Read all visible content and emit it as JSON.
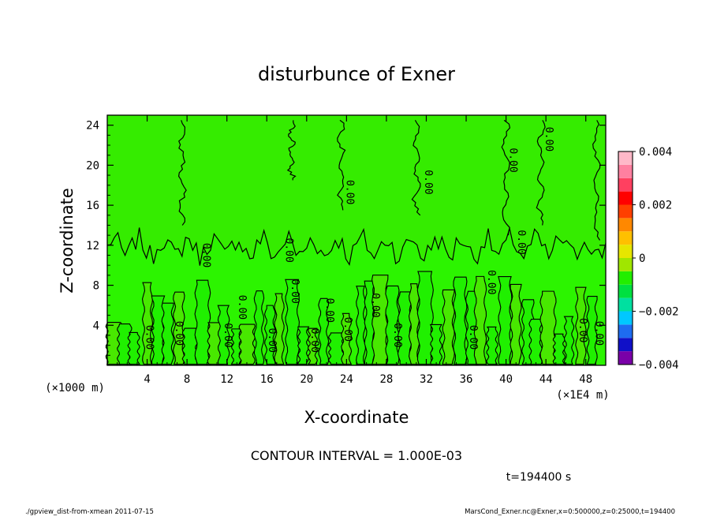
{
  "chart_data": {
    "type": "heatmap",
    "title": "disturbunce of Exner",
    "xlabel": "X-coordinate",
    "ylabel": "Z-coordinate",
    "x_unit_label": "(×1E4 m)",
    "y_unit_label": "(×1000 m)",
    "xlim": [
      0,
      50
    ],
    "ylim": [
      0,
      25
    ],
    "x_ticks": [
      4,
      8,
      12,
      16,
      20,
      24,
      28,
      32,
      36,
      40,
      44,
      48
    ],
    "y_ticks": [
      4,
      8,
      12,
      16,
      20,
      24
    ],
    "contour_interval_text": "CONTOUR INTERVAL = 1.000E-03",
    "contour_label": "0.00",
    "colorbar": {
      "range": [
        -0.004,
        0.004
      ],
      "tick_labels": [
        "0.004",
        "0.002",
        "0",
        "−0.002",
        "−0.004"
      ],
      "colors": [
        "#7a00a8",
        "#1010c8",
        "#1e6cf0",
        "#00c8ff",
        "#00e0a0",
        "#00e040",
        "#22ee00",
        "#a0e600",
        "#e6e600",
        "#ffc000",
        "#ff8800",
        "#ff4000",
        "#ff0000",
        "#ff4060",
        "#ff80a0",
        "#ffb8c8"
      ]
    },
    "time_label": "t=194400 s",
    "background_value": 0
  },
  "footer": {
    "left": "./gpview_dist-from-xmean  2011-07-15",
    "right": "MarsCond_Exner.nc@Exner,x=0:500000,z=0:25000,t=194400"
  }
}
